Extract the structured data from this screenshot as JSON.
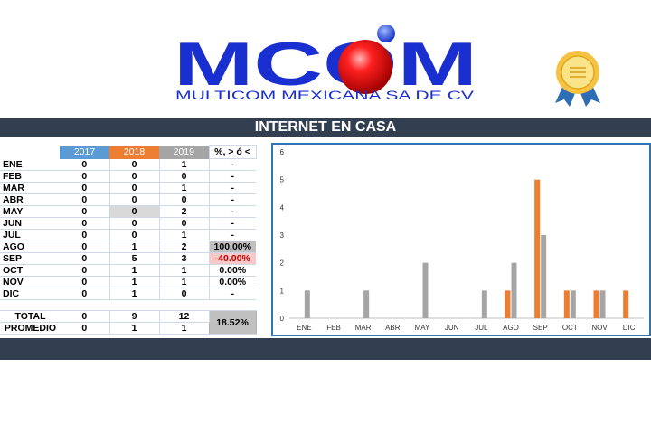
{
  "header": {
    "logo_text": "MCOM",
    "company": "MULTICOM MEXICANA SA DE CV"
  },
  "title": "INTERNET EN CASA",
  "table": {
    "headers": [
      "2017",
      "2018",
      "2019",
      "%, > ó <"
    ],
    "rows": [
      {
        "month": "ENE",
        "y2017": "0",
        "y2018": "0",
        "y2019": "1",
        "pct": "-"
      },
      {
        "month": "FEB",
        "y2017": "0",
        "y2018": "0",
        "y2019": "0",
        "pct": "-"
      },
      {
        "month": "MAR",
        "y2017": "0",
        "y2018": "0",
        "y2019": "1",
        "pct": "-"
      },
      {
        "month": "ABR",
        "y2017": "0",
        "y2018": "0",
        "y2019": "0",
        "pct": "-"
      },
      {
        "month": "MAY",
        "y2017": "0",
        "y2018": "0",
        "y2019": "2",
        "pct": "-"
      },
      {
        "month": "JUN",
        "y2017": "0",
        "y2018": "0",
        "y2019": "0",
        "pct": "-"
      },
      {
        "month": "JUL",
        "y2017": "0",
        "y2018": "0",
        "y2019": "1",
        "pct": "-"
      },
      {
        "month": "AGO",
        "y2017": "0",
        "y2018": "1",
        "y2019": "2",
        "pct": "100.00%"
      },
      {
        "month": "SEP",
        "y2017": "0",
        "y2018": "5",
        "y2019": "3",
        "pct": "-40.00%"
      },
      {
        "month": "OCT",
        "y2017": "0",
        "y2018": "1",
        "y2019": "1",
        "pct": "0.00%"
      },
      {
        "month": "NOV",
        "y2017": "0",
        "y2018": "1",
        "y2019": "1",
        "pct": "0.00%"
      },
      {
        "month": "DIC",
        "y2017": "0",
        "y2018": "1",
        "y2019": "0",
        "pct": "-"
      }
    ],
    "total": {
      "label": "TOTAL",
      "y2017": "0",
      "y2018": "9",
      "y2019": "12"
    },
    "average": {
      "label": "PROMEDIO",
      "y2017": "0",
      "y2018": "1",
      "y2019": "1"
    },
    "total_pct": "18.52%"
  },
  "colors": {
    "y2017": "#5b9bd5",
    "y2018": "#ed7d31",
    "y2019": "#a5a5a5",
    "bar_band": "#323f50"
  },
  "chart_data": {
    "type": "bar",
    "categories": [
      "ENE",
      "FEB",
      "MAR",
      "ABR",
      "MAY",
      "JUN",
      "JUL",
      "AGO",
      "SEP",
      "OCT",
      "NOV",
      "DIC"
    ],
    "series": [
      {
        "values": [
          0,
          0,
          0,
          0,
          0,
          0,
          0,
          1,
          5,
          1,
          1,
          1
        ],
        "color": "#ed7d31"
      },
      {
        "values": [
          1,
          0,
          1,
          0,
          2,
          0,
          1,
          2,
          3,
          1,
          1,
          0
        ],
        "color": "#a5a5a5"
      }
    ],
    "ylim": [
      0,
      6
    ],
    "yticks": [
      "0",
      "1",
      "2",
      "3",
      "4",
      "5",
      "6"
    ],
    "legend": "none",
    "grid": false
  }
}
